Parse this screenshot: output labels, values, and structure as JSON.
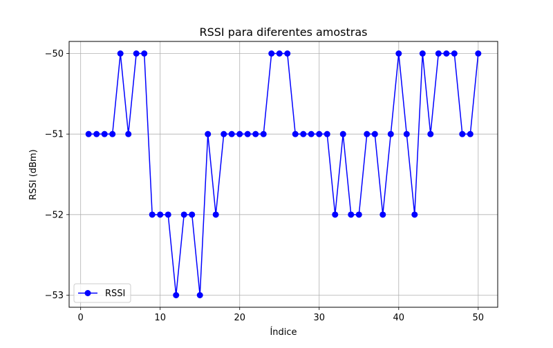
{
  "chart_data": {
    "type": "line",
    "title": "RSSI para diferentes amostras",
    "xlabel": "Índice",
    "ylabel": "RSSI (dBm)",
    "xlim": [
      -1.45,
      52.45
    ],
    "ylim": [
      -53.15,
      -49.85
    ],
    "xticks": [
      0,
      10,
      20,
      30,
      40,
      50
    ],
    "yticks": [
      -53,
      -52,
      -51,
      -50
    ],
    "xtick_labels": [
      "0",
      "10",
      "20",
      "30",
      "40",
      "50"
    ],
    "ytick_labels": [
      "−53",
      "−52",
      "−51",
      "−50"
    ],
    "grid": true,
    "legend_position": "lower-left",
    "series": [
      {
        "name": "RSSI",
        "color": "#0000ff",
        "marker": "circle",
        "x": [
          1,
          2,
          3,
          4,
          5,
          6,
          7,
          8,
          9,
          10,
          11,
          12,
          13,
          14,
          15,
          16,
          17,
          18,
          19,
          20,
          21,
          22,
          23,
          24,
          25,
          26,
          27,
          28,
          29,
          30,
          31,
          32,
          33,
          34,
          35,
          36,
          37,
          38,
          39,
          40,
          41,
          42,
          43,
          44,
          45,
          46,
          47,
          48,
          49,
          50
        ],
        "y": [
          -51,
          -51,
          -51,
          -51,
          -50,
          -51,
          -50,
          -50,
          -52,
          -52,
          -52,
          -53,
          -52,
          -52,
          -53,
          -51,
          -52,
          -51,
          -51,
          -51,
          -51,
          -51,
          -51,
          -50,
          -50,
          -50,
          -51,
          -51,
          -51,
          -51,
          -51,
          -52,
          -51,
          -52,
          -52,
          -51,
          -51,
          -52,
          -51,
          -50,
          -51,
          -52,
          -50,
          -51,
          -50,
          -50,
          -50,
          -51,
          -51,
          -50
        ]
      }
    ]
  }
}
